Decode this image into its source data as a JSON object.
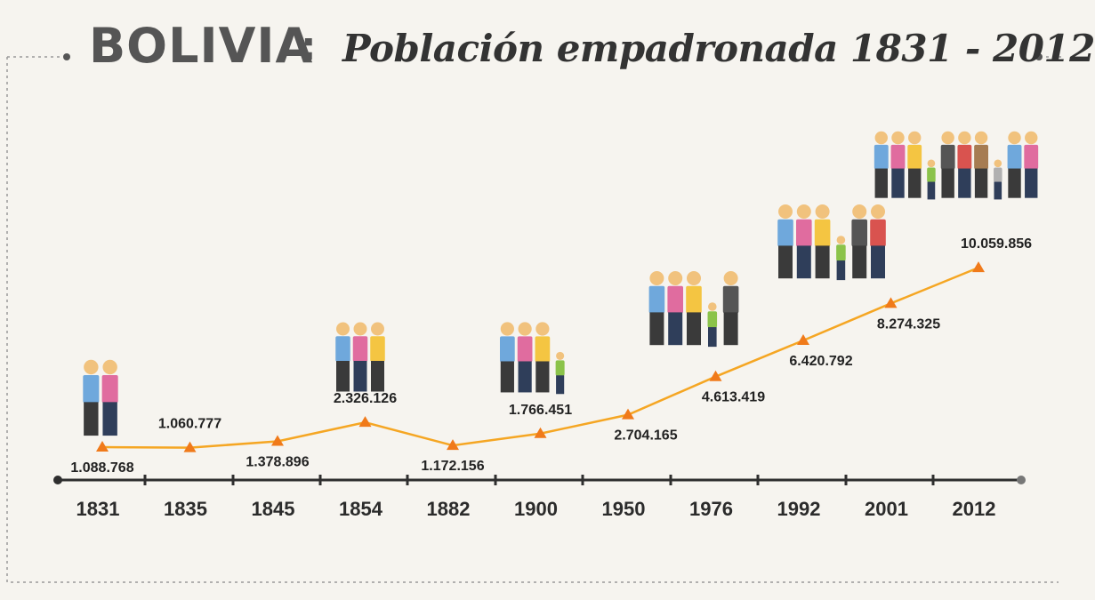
{
  "title": {
    "main": "BOLIVIA",
    "colon": ":",
    "subtitle": "Población empadronada 1831 - 2012"
  },
  "colors": {
    "line": "#f5a623",
    "marker": "#f07a1a",
    "axis": "#2e2e2e",
    "frame": "#9a9a9a",
    "background": "#f6f4ef"
  },
  "chart_data": {
    "type": "line",
    "title": "BOLIVIA: Población empadronada 1831 - 2012",
    "xlabel": "",
    "ylabel": "",
    "categories": [
      "1831",
      "1835",
      "1845",
      "1854",
      "1882",
      "1900",
      "1950",
      "1976",
      "1992",
      "2001",
      "2012"
    ],
    "series": [
      {
        "values": [
          1088768,
          1060777,
          1378896,
          2326126,
          1172156,
          1766451,
          2704165,
          4613419,
          6420792,
          8274325,
          10059856
        ],
        "labels": [
          "1.088.768",
          "1.060.777",
          "1.378.896",
          "2.326.126",
          "1.172.156",
          "1.766.451",
          "2.704.165",
          "4.613.419",
          "6.420.792",
          "8.274.325",
          "10.059.856"
        ]
      }
    ],
    "marker": "triangle",
    "grid": false,
    "legend": "none",
    "decorations": "family-illustrations"
  }
}
